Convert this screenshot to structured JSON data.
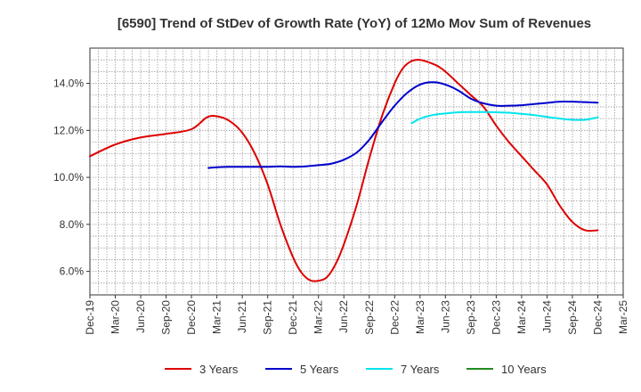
{
  "chart_data": {
    "type": "line",
    "title": "[6590]  Trend of StDev of Growth Rate (YoY) of 12Mo Mov Sum of Revenues",
    "xlabel": "",
    "ylabel": "",
    "ylim": [
      5.0,
      15.5
    ],
    "y_ticks": [
      6.0,
      8.0,
      10.0,
      12.0,
      14.0
    ],
    "y_tick_labels": [
      "6.0%",
      "8.0%",
      "10.0%",
      "12.0%",
      "14.0%"
    ],
    "categories": [
      "Dec-19",
      "Mar-20",
      "Jun-20",
      "Sep-20",
      "Dec-20",
      "Mar-21",
      "Jun-21",
      "Sep-21",
      "Dec-21",
      "Mar-22",
      "Jun-22",
      "Sep-22",
      "Dec-22",
      "Mar-23",
      "Jun-23",
      "Sep-23",
      "Dec-23",
      "Mar-24",
      "Jun-24",
      "Sep-24",
      "Dec-24",
      "Mar-25"
    ],
    "grid": true,
    "legend_position": "bottom",
    "series": [
      {
        "name": "3 Years",
        "color": "#dd0000",
        "x": [
          0,
          1,
          2,
          3,
          4,
          4.6,
          5,
          5.5,
          6,
          6.5,
          7,
          7.5,
          8,
          8.33,
          8.67,
          9,
          9.33,
          9.67,
          10,
          10.5,
          11,
          11.5,
          12,
          12.33,
          12.67,
          13,
          13.33,
          13.67,
          14,
          14.5,
          15,
          15.5,
          16,
          16.5,
          17,
          17.5,
          18,
          18.5,
          19,
          19.5,
          20
        ],
        "values": [
          10.9,
          11.4,
          11.7,
          11.85,
          12.05,
          12.55,
          12.6,
          12.4,
          11.9,
          11.0,
          9.7,
          8.0,
          6.6,
          5.95,
          5.62,
          5.6,
          5.75,
          6.3,
          7.15,
          8.8,
          10.8,
          12.6,
          14.0,
          14.65,
          14.95,
          15.0,
          14.9,
          14.75,
          14.5,
          14.0,
          13.5,
          13.0,
          12.2,
          11.5,
          10.9,
          10.3,
          9.7,
          8.8,
          8.1,
          7.75,
          7.75
        ]
      },
      {
        "name": "5 Years",
        "color": "#0000cc",
        "x": [
          4.67,
          5,
          5.5,
          6,
          6.5,
          7,
          7.5,
          8,
          8.5,
          9,
          9.5,
          10,
          10.5,
          11,
          11.5,
          12,
          12.5,
          13,
          13.5,
          14,
          14.5,
          15,
          15.5,
          16,
          16.5,
          17,
          17.5,
          18,
          18.5,
          19,
          19.5,
          20
        ],
        "values": [
          10.4,
          10.43,
          10.45,
          10.45,
          10.45,
          10.45,
          10.47,
          10.45,
          10.47,
          10.52,
          10.58,
          10.75,
          11.05,
          11.6,
          12.35,
          13.05,
          13.6,
          13.95,
          14.05,
          13.95,
          13.7,
          13.35,
          13.15,
          13.05,
          13.05,
          13.07,
          13.12,
          13.17,
          13.22,
          13.22,
          13.2,
          13.18
        ]
      },
      {
        "name": "7 Years",
        "color": "#00e5ee",
        "x": [
          12.67,
          13,
          13.5,
          14,
          14.5,
          15,
          15.5,
          16,
          16.5,
          17,
          17.5,
          18,
          18.5,
          19,
          19.5,
          20
        ],
        "values": [
          12.3,
          12.5,
          12.65,
          12.72,
          12.77,
          12.78,
          12.78,
          12.77,
          12.75,
          12.7,
          12.65,
          12.57,
          12.5,
          12.45,
          12.45,
          12.55
        ]
      },
      {
        "name": "10 Years",
        "color": "#228b22",
        "x": [],
        "values": []
      }
    ]
  }
}
